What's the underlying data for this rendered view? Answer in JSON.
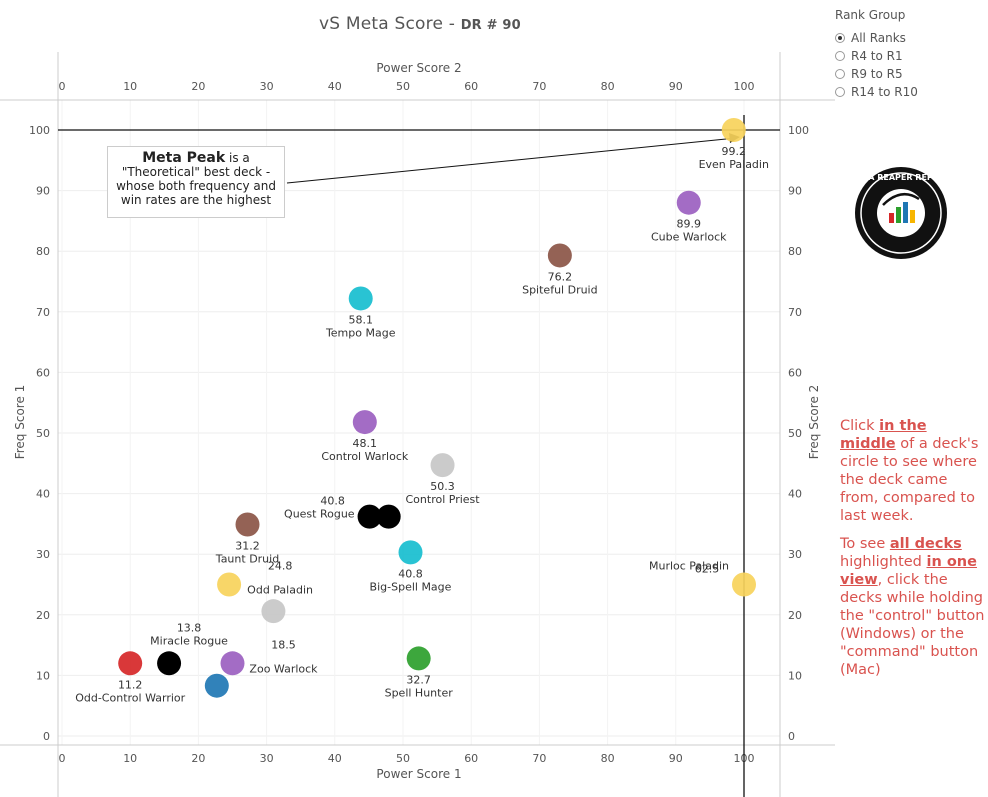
{
  "title": {
    "main": "vS Meta Score",
    "separator": " - ",
    "sub": "DR # 90"
  },
  "rank_group": {
    "title": "Rank Group",
    "options": [
      "All Ranks",
      "R4 to R1",
      "R9 to R5",
      "R14 to R10"
    ],
    "selected_index": 0
  },
  "callout": {
    "bold": "Meta Peak",
    "line1_rest": " is a",
    "line2": "\"Theoretical\" best deck -",
    "line3": "whose both frequency and",
    "line4": "win rates are the highest"
  },
  "instructions": {
    "p1_a": "Click ",
    "p1_b": "in the middle",
    "p1_c": " of a deck's circle to see where the deck came from, compared to last week.",
    "p2_a": "To see ",
    "p2_b": "all decks ",
    "p2_c": "highlighted ",
    "p2_d": "in one view",
    "p2_e": ", click the decks while holding the \"control\" button (Windows) or the \"command\" button (Mac)"
  },
  "logo": {
    "icon": "data-reaper-report-logo",
    "text": "DATA REAPER REPORT"
  },
  "chart_data": {
    "type": "scatter",
    "title": "vS Meta Score - DR # 90",
    "xlabel_bottom": "Power Score 1",
    "xlabel_top": "Power Score 2",
    "ylabel_left": "Freq Score 1",
    "ylabel_right": "Freq Score 2",
    "xlim": [
      0,
      100
    ],
    "ylim": [
      0,
      100
    ],
    "xticks": [
      "0",
      "10",
      "20",
      "30",
      "40",
      "50",
      "60",
      "70",
      "80",
      "90",
      "100"
    ],
    "yticks": [
      "0",
      "10",
      "20",
      "30",
      "40",
      "50",
      "60",
      "70",
      "80",
      "90",
      "100"
    ],
    "grid": true,
    "meta_peak": {
      "x": 100,
      "y": 100
    },
    "points": [
      {
        "name": "Even Paladin",
        "score": "99.2",
        "x": 98.5,
        "y": 100,
        "color": "#f7d35b",
        "label_pos": "below"
      },
      {
        "name": "Cube Warlock",
        "score": "89.9",
        "x": 91.9,
        "y": 88,
        "color": "#9b5fc0",
        "label_pos": "below"
      },
      {
        "name": "Spiteful Druid",
        "score": "76.2",
        "x": 73.0,
        "y": 79.3,
        "color": "#8b5546",
        "label_pos": "below"
      },
      {
        "name": "Tempo Mage",
        "score": "58.1",
        "x": 43.8,
        "y": 72.2,
        "color": "#17becf",
        "label_pos": "below"
      },
      {
        "name": "Control Warlock",
        "score": "48.1",
        "x": 44.4,
        "y": 51.8,
        "color": "#9b5fc0",
        "label_pos": "below"
      },
      {
        "name": "Control Priest",
        "score": "50.3",
        "x": 55.8,
        "y": 44.7,
        "color": "#c7c7c7",
        "label_pos": "below"
      },
      {
        "name": "Quest Rogue",
        "score": "40.8",
        "x": 45.1,
        "y": 36.2,
        "color": "#000000",
        "label_pos": "left"
      },
      {
        "name": "Quest Rogue",
        "score": "",
        "x": 47.9,
        "y": 36.2,
        "color": "#000000",
        "label_pos": "none"
      },
      {
        "name": "Taunt Druid",
        "score": "31.2",
        "x": 27.2,
        "y": 34.9,
        "color": "#8b5546",
        "label_pos": "below"
      },
      {
        "name": "Big-Spell Mage",
        "score": "40.8",
        "x": 51.1,
        "y": 30.3,
        "color": "#17becf",
        "label_pos": "below"
      },
      {
        "name": "Odd Paladin",
        "score": "24.8",
        "x": 24.5,
        "y": 25.0,
        "color": "#f7d35b",
        "label_pos": "right"
      },
      {
        "name": "Murloc Paladin",
        "score": "62.5",
        "x": 100,
        "y": 25.0,
        "color": "#f7d35b",
        "label_pos": "left"
      },
      {
        "name": "",
        "score": "",
        "x": 31.0,
        "y": 20.6,
        "color": "#c7c7c7",
        "label_pos": "none"
      },
      {
        "name": "Miracle Rogue",
        "score": "13.8",
        "x": 15.7,
        "y": 12.0,
        "color": "#000000",
        "label_pos": "above"
      },
      {
        "name": "Zoo Warlock",
        "score": "18.5",
        "x": 25.0,
        "y": 12.0,
        "color": "#9b5fc0",
        "label_pos": "right"
      },
      {
        "name": "Odd-Control Warrior",
        "score": "11.2",
        "x": 10.0,
        "y": 12.0,
        "color": "#d62728",
        "label_pos": "below"
      },
      {
        "name": "",
        "score": "",
        "x": 22.7,
        "y": 8.3,
        "color": "#1f77b4",
        "label_pos": "none"
      },
      {
        "name": "Spell Hunter",
        "score": "32.7",
        "x": 52.3,
        "y": 12.8,
        "color": "#2ca02c",
        "label_pos": "below"
      }
    ]
  }
}
